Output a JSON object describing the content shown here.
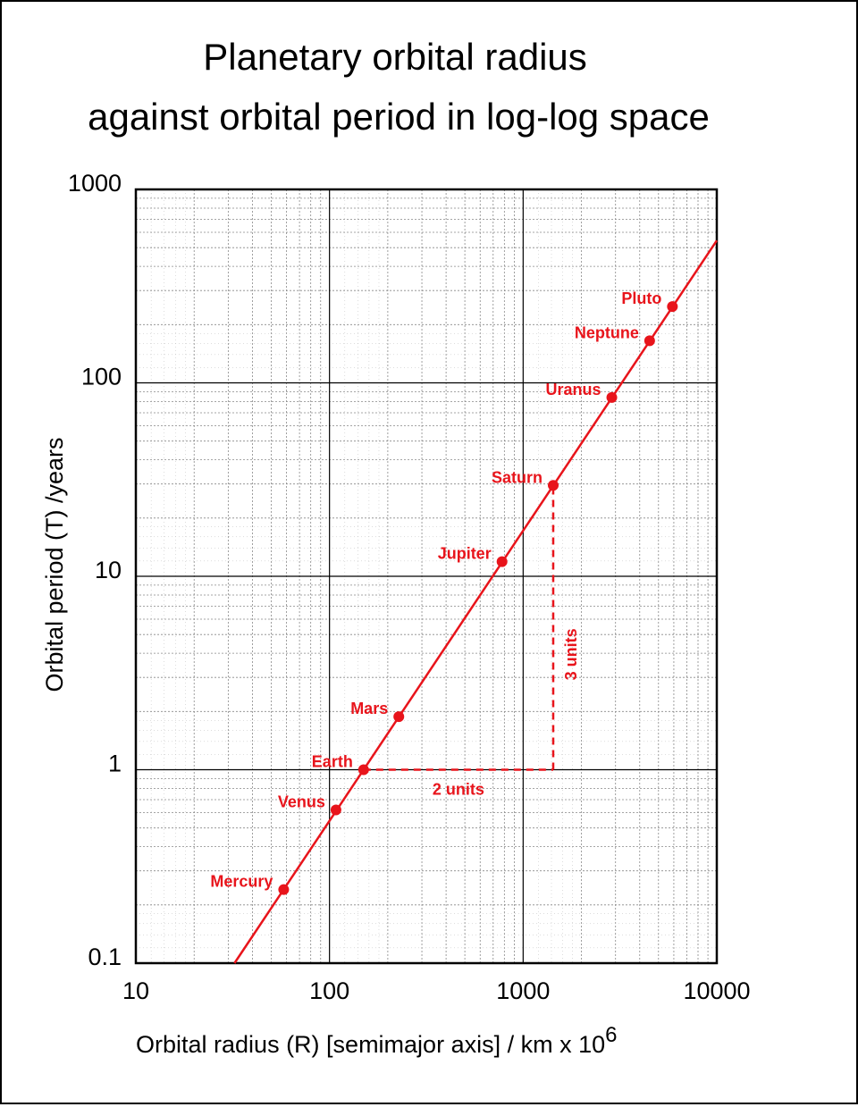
{
  "chart_data": {
    "type": "scatter",
    "title_lines": [
      "Planetary orbital radius",
      "against orbital period in log-log space"
    ],
    "xlabel": "Orbital radius (R) [semimajor axis] / km x 10",
    "xlabel_superscript": "6",
    "ylabel": "Orbital period (T) /years",
    "xscale": "log",
    "yscale": "log",
    "xlim": [
      10,
      10000
    ],
    "ylim": [
      0.1,
      1000
    ],
    "grid": true,
    "x_ticks": [
      {
        "value": 10,
        "label": "10"
      },
      {
        "value": 100,
        "label": "100"
      },
      {
        "value": 1000,
        "label": "1000"
      },
      {
        "value": 10000,
        "label": "10000"
      }
    ],
    "y_ticks": [
      {
        "value": 0.1,
        "label": "0.1"
      },
      {
        "value": 1,
        "label": "1"
      },
      {
        "value": 10,
        "label": "10"
      },
      {
        "value": 100,
        "label": "100"
      },
      {
        "value": 1000,
        "label": "1000"
      }
    ],
    "points": [
      {
        "label": "Mercury",
        "x": 58,
        "y": 0.24
      },
      {
        "label": "Venus",
        "x": 108,
        "y": 0.62
      },
      {
        "label": "Earth",
        "x": 150,
        "y": 1
      },
      {
        "label": "Mars",
        "x": 228,
        "y": 1.88
      },
      {
        "label": "Jupiter",
        "x": 778,
        "y": 11.9
      },
      {
        "label": "Saturn",
        "x": 1430,
        "y": 29.5
      },
      {
        "label": "Uranus",
        "x": 2870,
        "y": 84
      },
      {
        "label": "Neptune",
        "x": 4500,
        "y": 165
      },
      {
        "label": "Pluto",
        "x": 5900,
        "y": 248
      }
    ],
    "fit_line": {
      "exponent": 1.5,
      "reference_x": 150,
      "reference_y": 1
    },
    "annotations": [
      {
        "text": "2 units",
        "from": {
          "x": 150,
          "y": 1
        },
        "to": {
          "x": 1430,
          "y": 1
        }
      },
      {
        "text": "3 units",
        "from": {
          "x": 1430,
          "y": 1
        },
        "to": {
          "x": 1430,
          "y": 29.5
        }
      }
    ],
    "colors": {
      "data": "#e8141b",
      "grid_major": "#000000",
      "grid_minor": "#888888"
    }
  }
}
